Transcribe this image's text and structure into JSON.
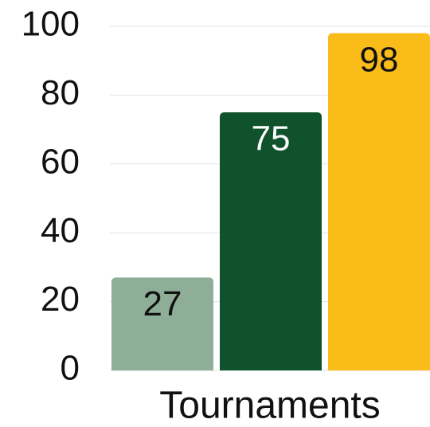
{
  "chart_data": {
    "type": "bar",
    "categories": [
      "Tournaments"
    ],
    "series": [
      {
        "color": "#8fae98",
        "values": [
          27
        ]
      },
      {
        "color": "#10522b",
        "values": [
          75
        ]
      },
      {
        "color": "#f9bc19",
        "values": [
          98
        ]
      }
    ],
    "ylim": [
      0,
      100
    ],
    "yticks": [
      0,
      20,
      40,
      60,
      80,
      100
    ],
    "grid": true
  }
}
